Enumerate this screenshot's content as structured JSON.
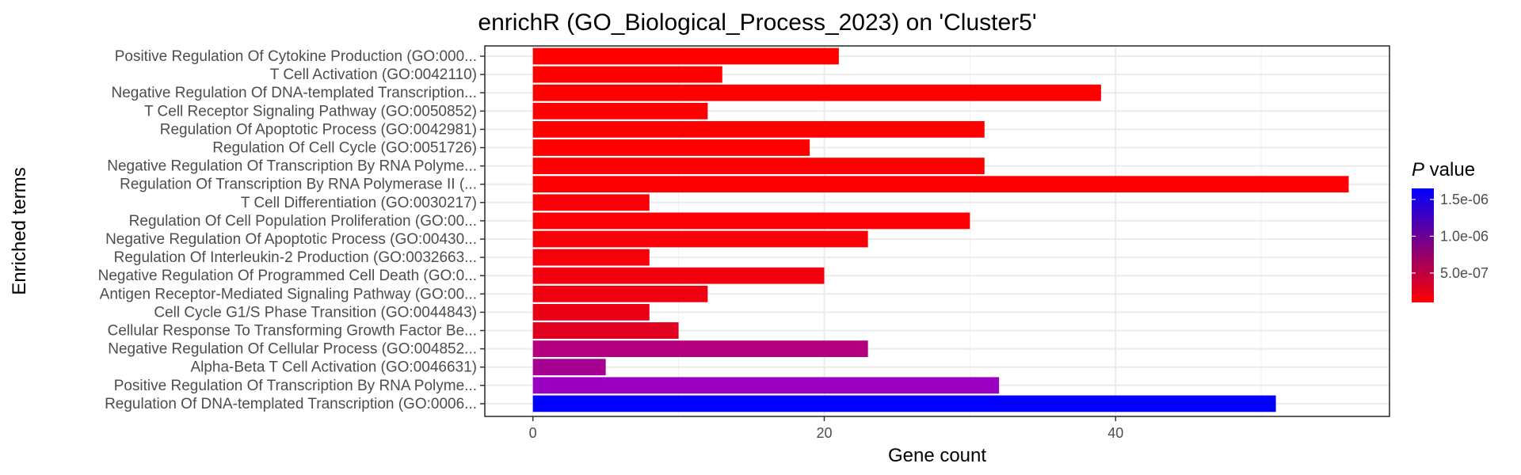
{
  "chart_data": {
    "type": "bar",
    "orientation": "horizontal",
    "title": "enrichR (GO_Biological_Process_2023) on 'Cluster5'",
    "xlabel": "Gene count",
    "ylabel": "Enriched terms",
    "xlim": [
      -3.3,
      58.8
    ],
    "xticks": [
      0,
      20,
      40
    ],
    "xtick_labels": [
      "0",
      "20",
      "40"
    ],
    "grid": true,
    "legend": {
      "title_italic": "P",
      "title_rest": " value",
      "placement": "right",
      "low_color": "#ff0000",
      "high_color": "#0000ff",
      "range": [
        1e-07,
        1.65e-06
      ],
      "ticks": [
        5e-07,
        1e-06,
        1.5e-06
      ],
      "tick_labels": [
        "5.0e-07",
        "1.0e-06",
        "1.5e-06"
      ]
    },
    "categories": [
      "Positive Regulation Of Cytokine Production (GO:000...",
      "T Cell Activation (GO:0042110)",
      "Negative Regulation Of DNA-templated Transcription...",
      "T Cell Receptor Signaling Pathway (GO:0050852)",
      "Regulation Of Apoptotic Process (GO:0042981)",
      "Regulation Of Cell Cycle (GO:0051726)",
      "Negative Regulation Of Transcription By RNA Polyme...",
      "Regulation Of Transcription By RNA Polymerase II (...",
      "T Cell Differentiation (GO:0030217)",
      "Regulation Of Cell Population Proliferation (GO:00...",
      "Negative Regulation Of Apoptotic Process (GO:00430...",
      "Regulation Of Interleukin-2 Production (GO:0032663...",
      "Negative Regulation Of Programmed Cell Death (GO:0...",
      "Antigen Receptor-Mediated Signaling Pathway (GO:00...",
      "Cell Cycle G1/S Phase Transition (GO:0044843)",
      "Cellular Response To Transforming Growth Factor Be...",
      "Negative Regulation Of Cellular Process (GO:004852...",
      "Alpha-Beta T Cell Activation (GO:0046631)",
      "Positive Regulation Of Transcription By RNA Polyme...",
      "Regulation Of DNA-templated Transcription (GO:0006..."
    ],
    "values": [
      21,
      13,
      39,
      12,
      31,
      19,
      31,
      56,
      8,
      30,
      23,
      8,
      20,
      12,
      8,
      10,
      23,
      5,
      32,
      51
    ],
    "colors": [
      "#ff0000",
      "#ff0000",
      "#ff0000",
      "#ff0000",
      "#ff0000",
      "#ff0000",
      "#ff0000",
      "#fc0003",
      "#fb0004",
      "#fa0005",
      "#f80007",
      "#f60009",
      "#f2000d",
      "#ef0010",
      "#ea0015",
      "#e0001f",
      "#b30080",
      "#a50090",
      "#9900c0",
      "#0000ff"
    ]
  }
}
